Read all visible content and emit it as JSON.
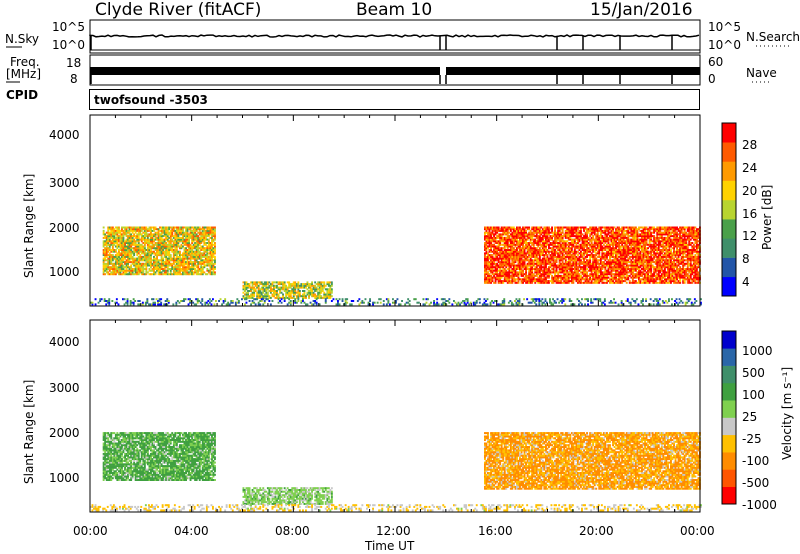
{
  "header": {
    "station": "Clyde River (fitACF)",
    "beam": "Beam 10",
    "date": "15/Jan/2016"
  },
  "nsky_panel": {
    "left_label": "N.Sky",
    "left_ticks": [
      "10^5",
      "10^0"
    ],
    "right_ticks": [
      "10^5",
      "10^0"
    ],
    "right_label": "N.Search"
  },
  "freq_panel": {
    "left_label_1": "Freq.",
    "left_label_2": "[MHz]",
    "left_ticks": [
      "18",
      "8"
    ],
    "right_ticks": [
      "60",
      "0"
    ],
    "right_label": "Nave"
  },
  "cpid_panel": {
    "label": "CPID",
    "value": "twofsound -3503"
  },
  "colors": {
    "power_scale": [
      "#0000ff",
      "#2255a8",
      "#3f8f6a",
      "#4aa04a",
      "#b8d430",
      "#ffd200",
      "#ff9a00",
      "#ff5a00",
      "#ff0000"
    ],
    "velocity_scale": [
      "#ff0000",
      "#ff5500",
      "#ff8c00",
      "#ffc000",
      "#c8c8c8",
      "#7fd04f",
      "#3fa040",
      "#3f8f6a",
      "#2a66a8",
      "#0000cc"
    ]
  },
  "chart_data": [
    {
      "type": "heatmap",
      "name": "power",
      "ylabel": "Slant Range [km]",
      "ylim": [
        180,
        4600
      ],
      "yticks": [
        "1000",
        "2000",
        "3000",
        "4000"
      ],
      "xlim": [
        "00:00",
        "24:00"
      ],
      "colorbar_label": "Power [dB]",
      "colorbar_ticks": [
        "4",
        "8",
        "12",
        "16",
        "20",
        "24",
        "28"
      ],
      "colorbar_range": [
        0,
        30
      ],
      "regions": [
        {
          "x": [
            0.5,
            4.9
          ],
          "y": [
            900,
            2000
          ],
          "value": 18
        },
        {
          "x": [
            6.0,
            9.5
          ],
          "y": [
            350,
            750
          ],
          "value": 16
        },
        {
          "x": [
            15.5,
            24.0
          ],
          "y": [
            700,
            2000
          ],
          "value": 26
        },
        {
          "x": [
            0.0,
            24.0
          ],
          "y": [
            200,
            350
          ],
          "value": 8
        }
      ]
    },
    {
      "type": "heatmap",
      "name": "velocity",
      "ylabel": "Slant Range [km]",
      "ylim": [
        180,
        4600
      ],
      "yticks": [
        "1000",
        "2000",
        "3000",
        "4000"
      ],
      "xlim": [
        "00:00",
        "24:00"
      ],
      "xlabel": "Time UT",
      "xticks": [
        "00:00",
        "04:00",
        "08:00",
        "12:00",
        "16:00",
        "20:00",
        "00:00"
      ],
      "colorbar_label": "Velocity [m s⁻¹]",
      "colorbar_ticks": [
        "1000",
        "500",
        "100",
        "25",
        "-25",
        "-100",
        "-500",
        "-1000"
      ],
      "regions": [
        {
          "x": [
            0.5,
            4.9
          ],
          "y": [
            900,
            2000
          ],
          "value": 150
        },
        {
          "x": [
            6.0,
            9.5
          ],
          "y": [
            350,
            750
          ],
          "value": 60
        },
        {
          "x": [
            15.5,
            24.0
          ],
          "y": [
            700,
            2000
          ],
          "value": -120
        },
        {
          "x": [
            0.0,
            24.0
          ],
          "y": [
            200,
            350
          ],
          "value": -30
        }
      ]
    }
  ]
}
